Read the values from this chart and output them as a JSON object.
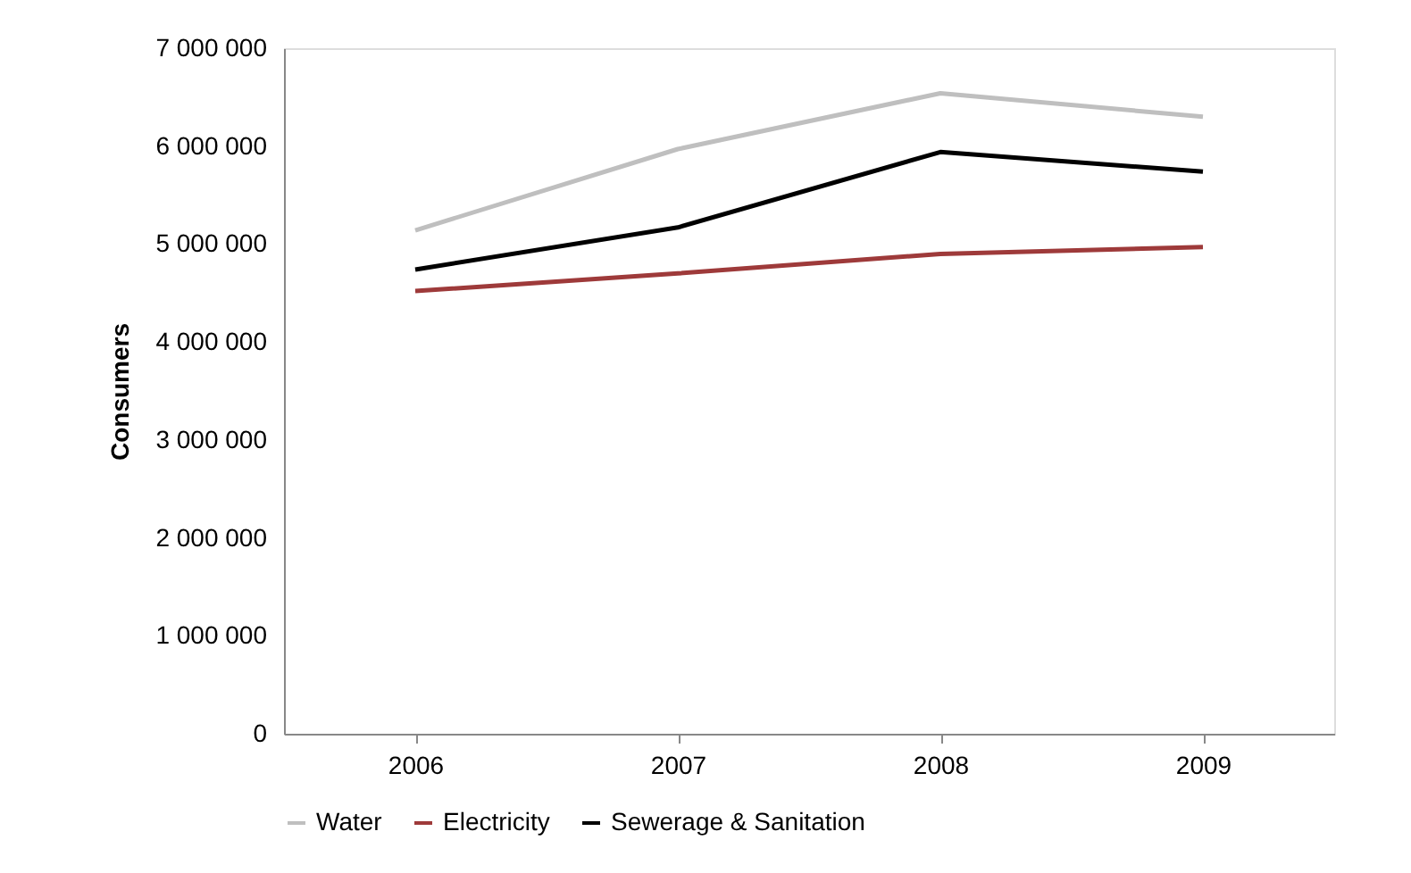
{
  "chart_data": {
    "type": "line",
    "ylabel": "Consumers",
    "categories": [
      "2006",
      "2007",
      "2008",
      "2009"
    ],
    "series": [
      {
        "name": "Water",
        "color": "#bfbfbf",
        "values": [
          5140000,
          5970000,
          6540000,
          6300000
        ]
      },
      {
        "name": "Electricity",
        "color": "#9e3a3a",
        "values": [
          4520000,
          4700000,
          4900000,
          4970000
        ]
      },
      {
        "name": "Sewerage & Sanitation",
        "color": "#000000",
        "values": [
          4740000,
          5170000,
          5940000,
          5740000
        ]
      }
    ],
    "ylim": [
      0,
      7000000
    ],
    "yticks": [
      {
        "value": 0,
        "label": "0"
      },
      {
        "value": 1000000,
        "label": "1 000 000"
      },
      {
        "value": 2000000,
        "label": "2 000 000"
      },
      {
        "value": 3000000,
        "label": "3 000 000"
      },
      {
        "value": 4000000,
        "label": "4 000 000"
      },
      {
        "value": 5000000,
        "label": "5 000 000"
      },
      {
        "value": 6000000,
        "label": "6 000 000"
      },
      {
        "value": 7000000,
        "label": "7 000 000"
      }
    ],
    "grid": false,
    "legend": "bottom",
    "marker": "none",
    "line_style": "solid"
  }
}
